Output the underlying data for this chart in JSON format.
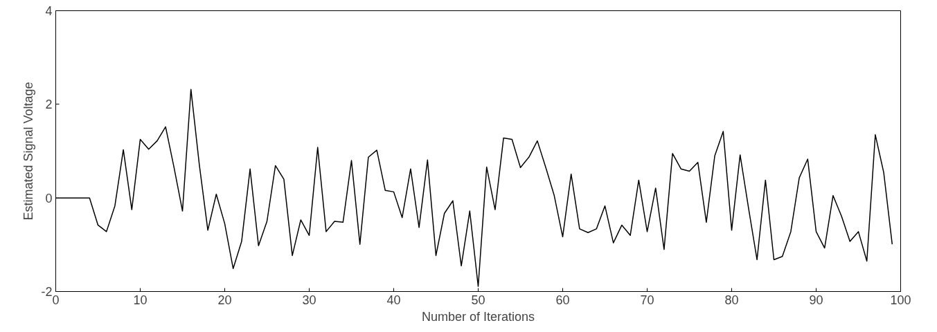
{
  "chart_data": {
    "type": "line",
    "xlabel": "Number of Iterations",
    "ylabel": "Estimated Signal Voltage",
    "x": [
      0,
      1,
      2,
      3,
      4,
      5,
      6,
      7,
      8,
      9,
      10,
      11,
      12,
      13,
      14,
      15,
      16,
      17,
      18,
      19,
      20,
      21,
      22,
      23,
      24,
      25,
      26,
      27,
      28,
      29,
      30,
      31,
      32,
      33,
      34,
      35,
      36,
      37,
      38,
      39,
      40,
      41,
      42,
      43,
      44,
      45,
      46,
      47,
      48,
      49,
      50,
      51,
      52,
      53,
      54,
      55,
      56,
      57,
      58,
      59,
      60,
      61,
      62,
      63,
      64,
      65,
      66,
      67,
      68,
      69,
      70,
      71,
      72,
      73,
      74,
      75,
      76,
      77,
      78,
      79,
      80,
      81,
      82,
      83,
      84,
      85,
      86,
      87,
      88,
      89,
      90,
      91,
      92,
      93,
      94,
      95,
      96,
      97,
      98,
      99
    ],
    "series": [
      {
        "color": "#000000",
        "values": [
          0,
          0,
          0,
          0,
          0,
          -0.58,
          -0.72,
          -0.17,
          1.03,
          -0.25,
          1.25,
          1.04,
          1.22,
          1.52,
          0.65,
          -0.28,
          2.32,
          0.7,
          -0.69,
          0.08,
          -0.55,
          -1.51,
          -0.93,
          0.62,
          -1.02,
          -0.5,
          0.69,
          0.4,
          -1.23,
          -0.47,
          -0.8,
          1.08,
          -0.72,
          -0.5,
          -0.52,
          0.8,
          -0.99,
          0.87,
          1.02,
          0.16,
          0.13,
          -0.42,
          0.62,
          -0.63,
          0.81,
          -1.23,
          -0.33,
          -0.06,
          -1.45,
          -0.28,
          -1.89,
          0.66,
          -0.25,
          1.28,
          1.25,
          0.65,
          0.87,
          1.22,
          0.65,
          0.05,
          -0.83,
          0.51,
          -0.66,
          -0.74,
          -0.66,
          -0.17,
          -0.96,
          -0.58,
          -0.8,
          0.38,
          -0.72,
          0.21,
          -1.1,
          0.95,
          0.62,
          0.57,
          0.76,
          -0.52,
          0.9,
          1.42,
          -0.69,
          0.92,
          -0.22,
          -1.32,
          0.38,
          -1.32,
          -1.25,
          -0.72,
          0.43,
          0.83,
          -0.72,
          -1.07,
          0.05,
          -0.39,
          -0.93,
          -0.72,
          -1.35,
          1.35,
          0.54,
          -0.99
        ]
      }
    ],
    "xlim": [
      0,
      100
    ],
    "xticks": [
      0,
      10,
      20,
      30,
      40,
      50,
      60,
      70,
      80,
      90,
      100
    ],
    "ylim": [
      -2,
      4
    ],
    "yticks": [
      -2,
      0,
      2,
      4
    ],
    "grid": false,
    "marker": "none",
    "line_style": "solid"
  }
}
